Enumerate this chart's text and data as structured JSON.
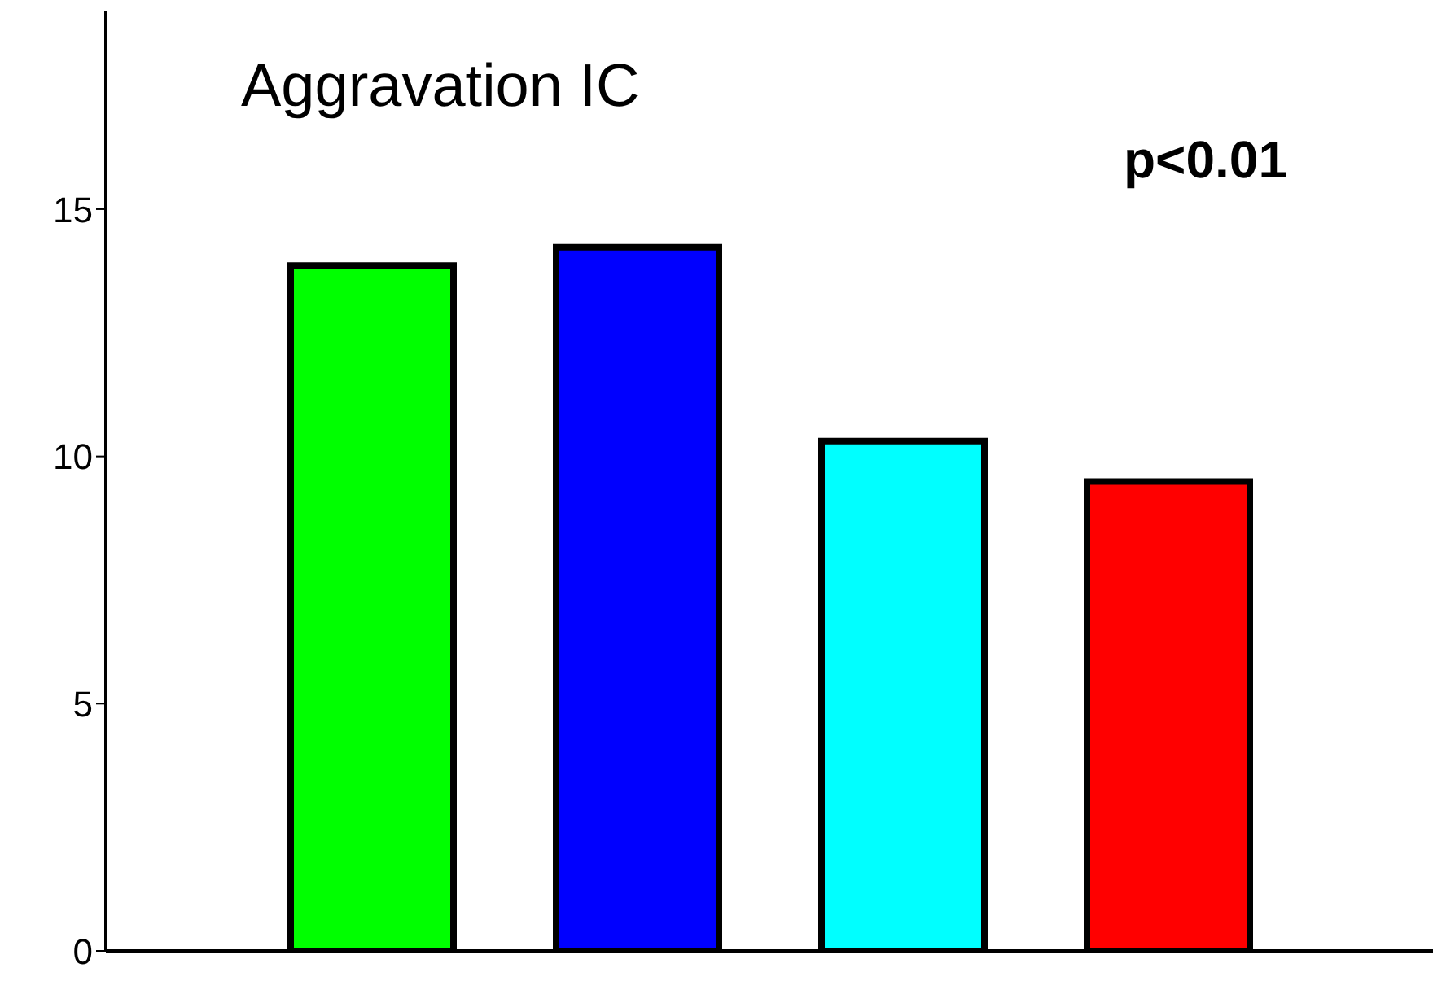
{
  "chart_data": {
    "type": "bar",
    "title": "Aggravation IC",
    "annotations": [
      "p<0.01"
    ],
    "categories": [
      null,
      null,
      null,
      null
    ],
    "values": [
      13.86,
      14.23,
      10.31,
      9.49
    ],
    "colors": [
      "#00ff00",
      "#0000ff",
      "#00ffff",
      "#ff0000"
    ],
    "ylim": [
      0,
      19
    ],
    "yticks": [
      0,
      5,
      10,
      15
    ]
  }
}
